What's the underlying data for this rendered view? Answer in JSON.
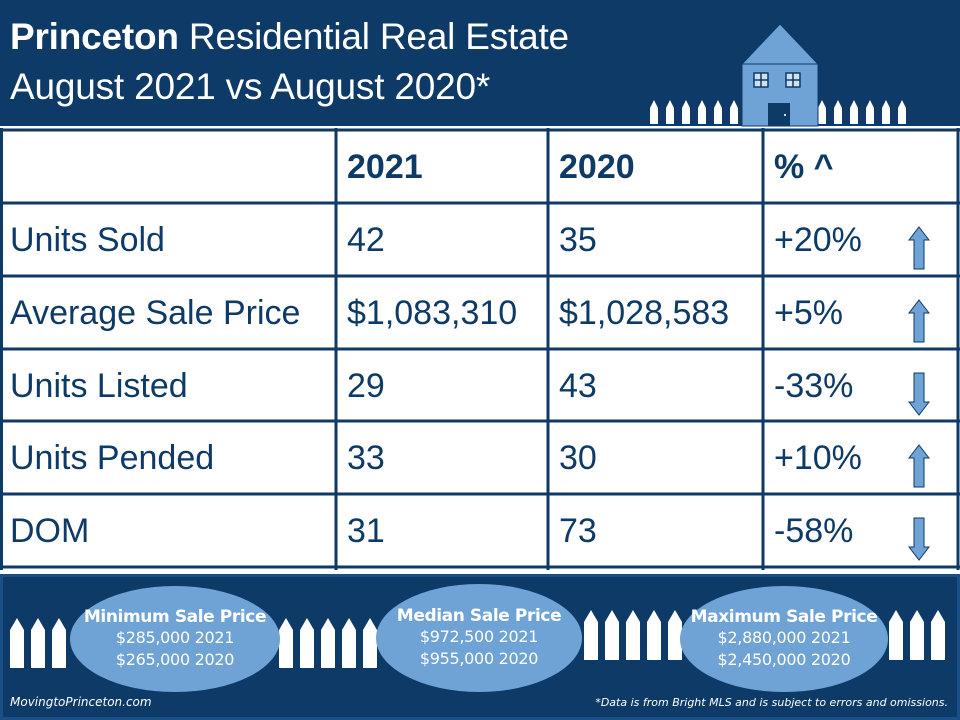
{
  "header": {
    "title_bold": "Princeton",
    "title_rest": " Residential Real Estate",
    "subtitle": "August 2021 vs August 2020*",
    "illustration": "house-with-picket-fence-icon"
  },
  "table": {
    "columns": [
      "",
      "2021",
      "2020",
      "% ^"
    ],
    "rows": [
      {
        "label": "Units Sold",
        "y2021": "42",
        "y2020": "35",
        "change": "+20%",
        "trend": "up"
      },
      {
        "label": "Average Sale Price",
        "y2021": "$1,083,310",
        "y2020": "$1,028,583",
        "change": "+5%",
        "trend": "up"
      },
      {
        "label": "Units Listed",
        "y2021": "29",
        "y2020": "43",
        "change": "-33%",
        "trend": "down"
      },
      {
        "label": "Units Pended",
        "y2021": "33",
        "y2020": "30",
        "change": "+10%",
        "trend": "up"
      },
      {
        "label": "DOM",
        "y2021": "31",
        "y2020": "73",
        "change": "-58%",
        "trend": "down"
      }
    ]
  },
  "summary": [
    {
      "title": "Minimum Sale Price",
      "line1": "$285,000 2021",
      "line2": "$265,000  2020"
    },
    {
      "title": "Median Sale Price",
      "line1": "$972,500 2021",
      "line2": "$955,000  2020"
    },
    {
      "title": "Maximum Sale Price",
      "line1": "$2,880,000 2021",
      "line2": "$2,450,000 2020"
    }
  ],
  "footer": {
    "website": "MovingtoPrinceton.com",
    "disclaimer": "*Data is from Bright MLS and is subject to errors and omissions."
  },
  "colors": {
    "navy": "#0d3a66",
    "light_blue": "#6fa3d6",
    "white": "#ffffff"
  }
}
